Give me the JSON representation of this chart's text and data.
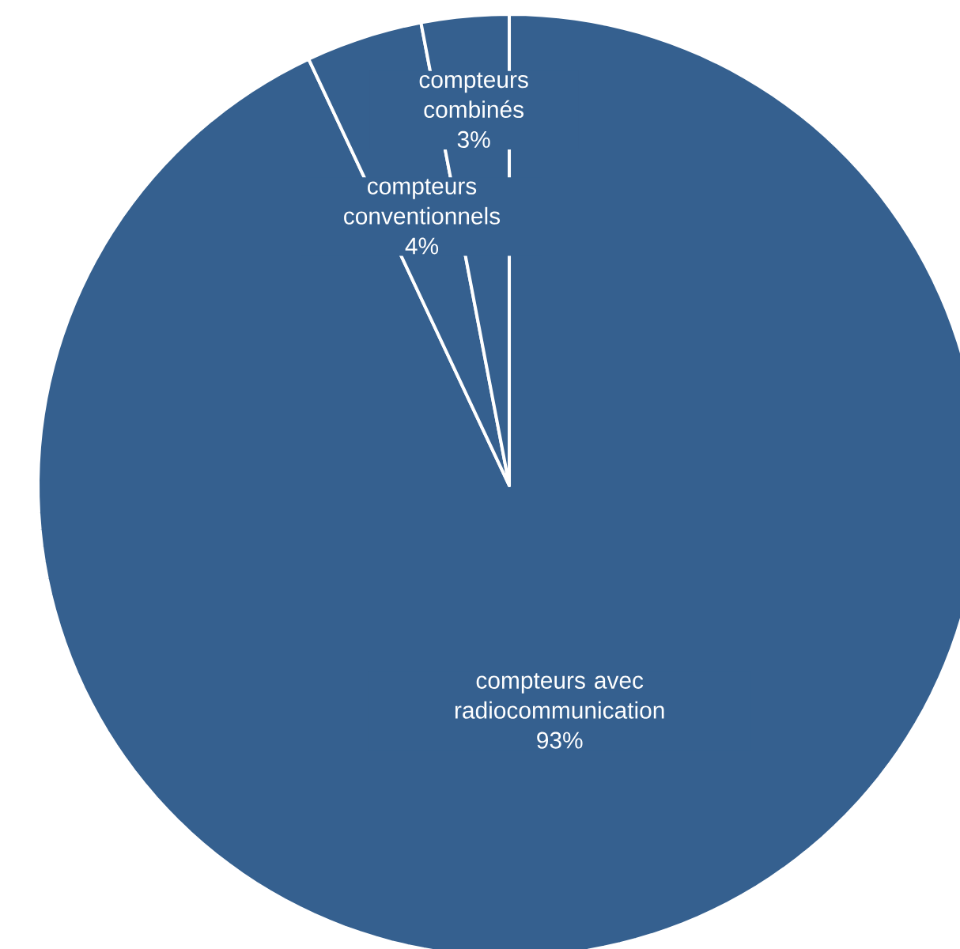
{
  "chart_data": {
    "type": "pie",
    "categories": [
      "compteurs avec radiocommunication",
      "compteurs conventionnels",
      "compteurs combinés"
    ],
    "values": [
      93,
      4,
      3
    ],
    "value_labels": [
      "93%",
      "4%",
      "3%"
    ],
    "colors": [
      "#35608f",
      "#35608f",
      "#35608f"
    ]
  }
}
